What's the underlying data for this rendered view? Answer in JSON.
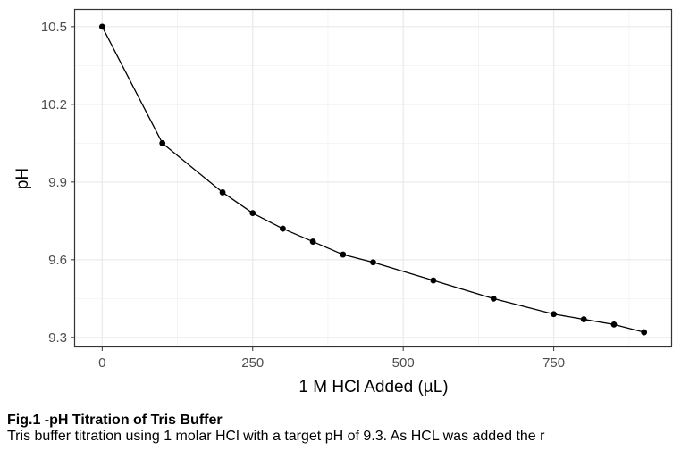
{
  "chart_data": {
    "type": "line",
    "x": [
      0,
      100,
      200,
      250,
      300,
      350,
      400,
      450,
      550,
      650,
      750,
      800,
      850,
      900
    ],
    "series": [
      {
        "values": [
          10.5,
          10.05,
          9.86,
          9.78,
          9.72,
          9.67,
          9.62,
          9.59,
          9.52,
          9.45,
          9.39,
          9.37,
          9.35,
          9.32
        ],
        "color": "#000000"
      }
    ],
    "xlabel": "1 M HCl Added (µL)",
    "ylabel": "pH",
    "xlim": [
      -45,
      945
    ],
    "ylim": [
      9.265,
      10.565
    ],
    "xticks": [
      0,
      250,
      500,
      750
    ],
    "xtick_labels": [
      "0",
      "250",
      "500",
      "750"
    ],
    "yticks": [
      9.3,
      9.6,
      9.9,
      10.2,
      10.5
    ],
    "ytick_labels": [
      "9.3",
      "9.6",
      "9.9",
      "10.2",
      "10.5"
    ],
    "x_minor_ticks": [
      125,
      375,
      625,
      875
    ],
    "y_minor_ticks": [
      9.45,
      9.75,
      10.05,
      10.35
    ],
    "grid": true,
    "theme": "bw",
    "legend": "none"
  },
  "caption": {
    "title": "Fig.1 -pH Titration of Tris Buffer",
    "text": "Tris buffer titration using 1 molar HCl with a target pH of 9.3. As HCL was added the r"
  }
}
